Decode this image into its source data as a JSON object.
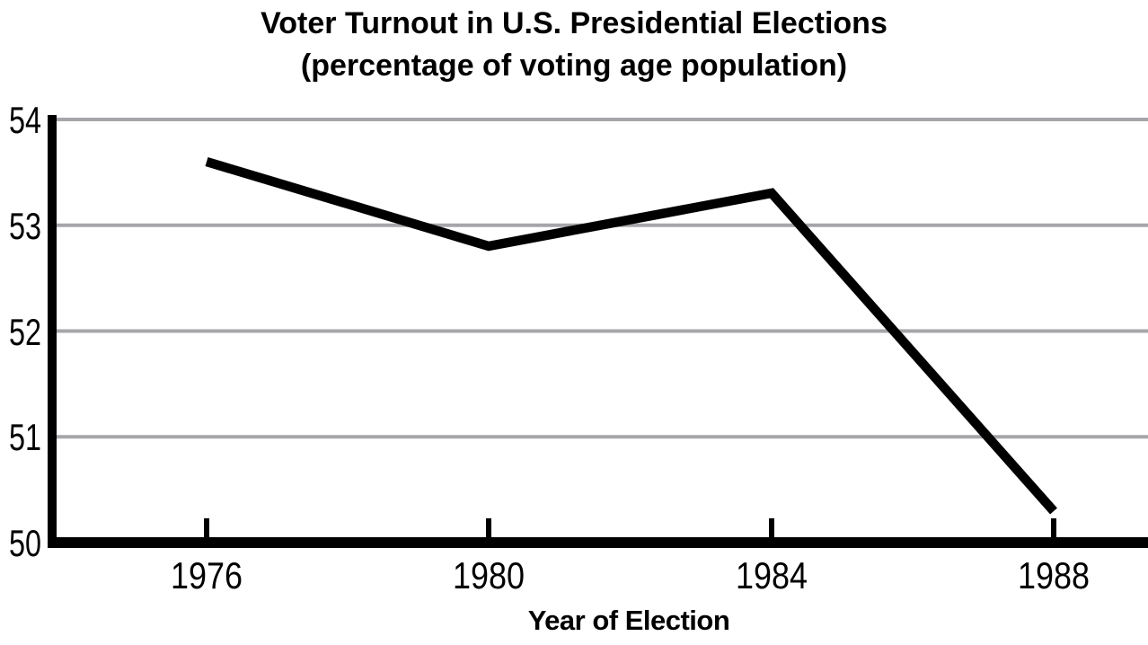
{
  "chart_data": {
    "type": "line",
    "title": "Voter Turnout in U.S. Presidential Elections",
    "subtitle": "(percentage of voting age population)",
    "xlabel": "Year of Election",
    "categories": [
      "1976",
      "1980",
      "1984",
      "1988"
    ],
    "values": [
      53.6,
      52.8,
      53.3,
      50.3
    ],
    "ylim": [
      50,
      54
    ],
    "yticks": [
      50,
      51,
      52,
      53,
      54
    ],
    "y_tick_labels": [
      "50",
      "51",
      "52",
      "53",
      "54"
    ],
    "grid": "horizontal",
    "legend": "none",
    "markers": "none",
    "colors": {
      "line": "#000000",
      "axis": "#000000",
      "grid": "#a6a6aa",
      "text": "#000000",
      "background": "#ffffff"
    }
  }
}
